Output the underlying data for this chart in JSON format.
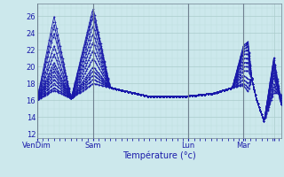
{
  "xlabel": "Température (°c)",
  "bg_color": "#cce8ec",
  "line_color": "#1a1aaa",
  "grid_color_major": "#aacccc",
  "grid_color_minor": "#bbdddd",
  "axis_label_color": "#1a1aaa",
  "tick_label_color": "#1a1aaa",
  "ylim": [
    11.5,
    27.5
  ],
  "yticks": [
    12,
    14,
    16,
    18,
    20,
    22,
    24,
    26
  ],
  "day_positions": [
    0.0,
    0.23,
    0.62,
    0.845,
    0.97
  ],
  "day_labels": [
    "VenDim",
    "Sam",
    "Lun",
    "Mar",
    ""
  ],
  "vline_positions": [
    0.0,
    0.23,
    0.62,
    0.845
  ],
  "N": 200
}
